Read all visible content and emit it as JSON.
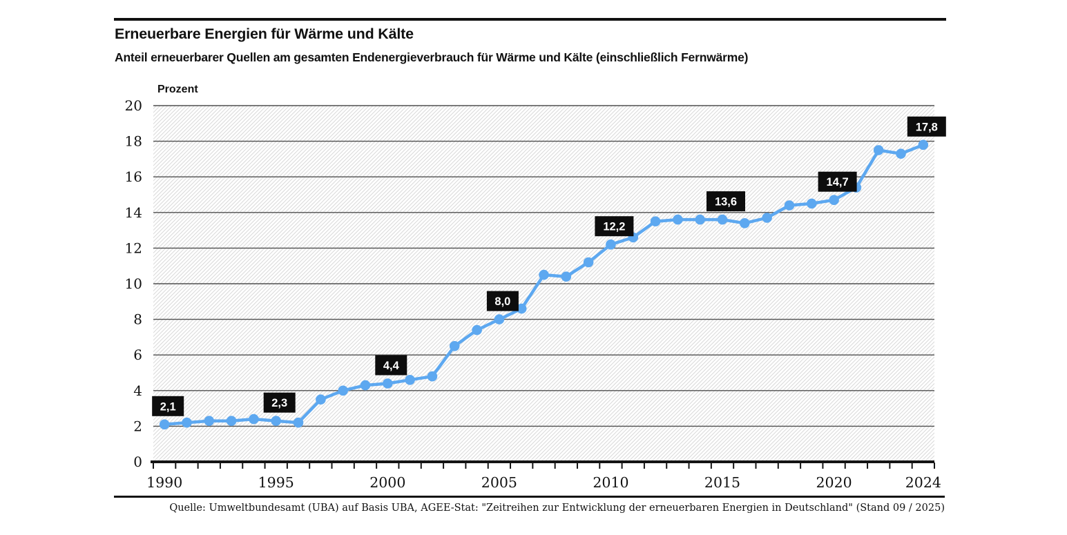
{
  "header": {
    "title": "Erneuerbare Energien für Wärme und Kälte",
    "subtitle": "Anteil erneuerbarer Quellen am gesamten Endenergieverbrauch für Wärme und Kälte (einschließlich Fernwärme)"
  },
  "chart_data": {
    "type": "line",
    "title": "Erneuerbare Energien für Wärme und Kälte",
    "xlabel": "",
    "ylabel": "Prozent",
    "ylim": [
      0,
      20
    ],
    "ytick_step": 2,
    "grid": "horizontal",
    "background": "diagonal-hatch",
    "legend": "none",
    "x": [
      1990,
      1991,
      1992,
      1993,
      1994,
      1995,
      1996,
      1997,
      1998,
      1999,
      2000,
      2001,
      2002,
      2003,
      2004,
      2005,
      2006,
      2007,
      2008,
      2009,
      2010,
      2011,
      2012,
      2013,
      2014,
      2015,
      2016,
      2017,
      2018,
      2019,
      2020,
      2021,
      2022,
      2023,
      2024
    ],
    "values": [
      2.1,
      2.2,
      2.3,
      2.3,
      2.4,
      2.3,
      2.2,
      3.5,
      4.0,
      4.3,
      4.4,
      4.6,
      4.8,
      6.5,
      7.4,
      8.0,
      8.6,
      10.5,
      10.4,
      11.2,
      12.2,
      12.6,
      13.5,
      13.6,
      13.6,
      13.6,
      13.4,
      13.7,
      14.4,
      14.5,
      14.7,
      15.4,
      17.5,
      17.3,
      17.8
    ],
    "xticks_labeled": [
      1990,
      1995,
      2000,
      2005,
      2010,
      2015,
      2020,
      2024
    ],
    "annotations": [
      {
        "x": 1990,
        "label": "2,1"
      },
      {
        "x": 1995,
        "label": "2,3"
      },
      {
        "x": 2000,
        "label": "4,4"
      },
      {
        "x": 2005,
        "label": "8,0"
      },
      {
        "x": 2010,
        "label": "12,2"
      },
      {
        "x": 2015,
        "label": "13,6"
      },
      {
        "x": 2020,
        "label": "14,7"
      },
      {
        "x": 2024,
        "label": "17,8"
      }
    ],
    "colors": {
      "series": "#5da8f0",
      "annotation_box": "#0d0d0d",
      "annotation_text": "#ffffff",
      "gridline": "#4e4e4e",
      "axis": "#141414",
      "hatch": "#d9d9d9"
    }
  },
  "footer": {
    "source": "Quelle: Umweltbundesamt (UBA) auf Basis UBA, AGEE-Stat: \"Zeitreihen zur Entwicklung der erneuerbaren Energien in Deutschland\" (Stand 09 / 2025)"
  }
}
